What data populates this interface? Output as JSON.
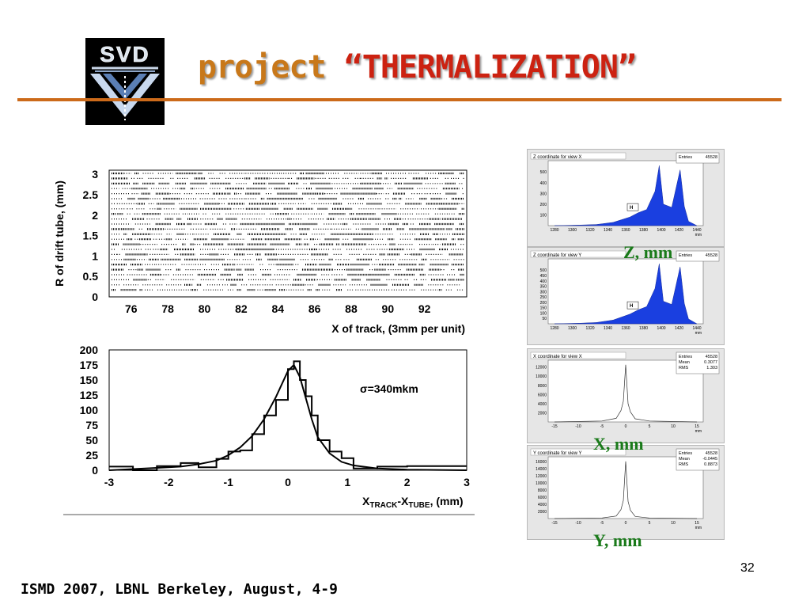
{
  "slide": {
    "title_word1": "project",
    "title_word2": "“THERMALIZATION”",
    "logo_text": "SVD",
    "page_number": "32",
    "footer": "ISMD 2007, LBNL Berkeley,  August, 4-9",
    "accent_color": "#cc6a1a"
  },
  "labels": {
    "z": "Z, mm",
    "x": "X, mm",
    "y": "Y, mm"
  },
  "chart_data": [
    {
      "type": "scatter",
      "title": "",
      "xlabel": "X of track, (3mm per unit)",
      "ylabel": "R of drift tube, (mm)",
      "xlim": [
        74.8,
        94.3
      ],
      "ylim": [
        0,
        3.1
      ],
      "x_ticks": [
        "76",
        "78",
        "80",
        "82",
        "84",
        "86",
        "88",
        "90",
        "92"
      ],
      "y_ticks": [
        "0",
        "0.5",
        "1",
        "1.5",
        "2",
        "2.5",
        "3"
      ]
    },
    {
      "type": "line",
      "title": "",
      "annotation": "σ=340mkm",
      "xlabel_parts": [
        "X",
        "TRACK",
        "-X",
        "TUBE",
        ", (mm)"
      ],
      "xlim": [
        -3,
        3
      ],
      "ylim": [
        0,
        200
      ],
      "x_ticks": [
        "-3",
        "-2",
        "-1",
        "0",
        "1",
        "2",
        "3"
      ],
      "y_ticks": [
        "0",
        "25",
        "50",
        "75",
        "100",
        "125",
        "150",
        "175",
        "200"
      ],
      "x": [
        -3.0,
        -2.6,
        -2.2,
        -1.8,
        -1.5,
        -1.2,
        -1.0,
        -0.8,
        -0.6,
        -0.4,
        -0.2,
        0.0,
        0.1,
        0.2,
        0.3,
        0.4,
        0.5,
        0.7,
        0.9,
        1.1,
        1.5,
        2.0,
        3.0
      ],
      "y": [
        0,
        2,
        4,
        6,
        10,
        16,
        25,
        38,
        57,
        85,
        122,
        165,
        175,
        155,
        120,
        85,
        55,
        28,
        14,
        8,
        3,
        1,
        0
      ]
    },
    {
      "type": "area",
      "title": "Z coordinate for view X",
      "legend": [
        "Entries",
        "45528"
      ],
      "x_ticks": [
        "1280",
        "1300",
        "1320",
        "1340",
        "1360",
        "1380",
        "1400",
        "1420",
        "1440"
      ],
      "y_ticks": [
        "100",
        "200",
        "300",
        "400",
        "500"
      ],
      "marker": "H",
      "x": [
        1270,
        1300,
        1320,
        1340,
        1360,
        1370,
        1380,
        1390,
        1395,
        1400,
        1410,
        1420,
        1425,
        1430,
        1440
      ],
      "y": [
        0,
        5,
        10,
        30,
        80,
        120,
        150,
        320,
        560,
        200,
        170,
        520,
        180,
        40,
        0
      ]
    },
    {
      "type": "area",
      "title": "Z coordinate for view Y",
      "legend": [
        "Entries",
        "45528"
      ],
      "x_ticks": [
        "1280",
        "1300",
        "1320",
        "1340",
        "1360",
        "1380",
        "1400",
        "1420",
        "1440"
      ],
      "y_ticks": [
        "50",
        "100",
        "150",
        "200",
        "250",
        "300",
        "350",
        "400",
        "450",
        "500"
      ],
      "marker": "H",
      "x": [
        1270,
        1300,
        1320,
        1340,
        1360,
        1370,
        1380,
        1390,
        1395,
        1400,
        1410,
        1420,
        1425,
        1430,
        1440
      ],
      "y": [
        0,
        5,
        12,
        35,
        90,
        130,
        160,
        330,
        560,
        210,
        180,
        530,
        190,
        45,
        0
      ]
    },
    {
      "type": "line",
      "title": "X coordinate for view X",
      "stats": [
        [
          "Entries",
          "45528"
        ],
        [
          "Mean",
          "0.3077"
        ],
        [
          "RMS",
          "1.303"
        ]
      ],
      "x_ticks": [
        "-15",
        "-10",
        "-5",
        "0",
        "5",
        "10",
        "15"
      ],
      "y_ticks": [
        "2000",
        "4000",
        "6000",
        "8000",
        "10000",
        "12000"
      ],
      "x": [
        -15,
        -5,
        -2,
        -1,
        -0.5,
        0,
        0.5,
        1,
        2,
        5,
        15
      ],
      "y": [
        0,
        200,
        800,
        2500,
        4500,
        12500,
        4000,
        2200,
        700,
        200,
        0
      ]
    },
    {
      "type": "line",
      "title": "Y coordinate for view Y",
      "stats": [
        [
          "Entries",
          "45528"
        ],
        [
          "Mean",
          "-0.0445"
        ],
        [
          "RMS",
          "0.8873"
        ]
      ],
      "x_ticks": [
        "-15",
        "-10",
        "-5",
        "0",
        "5",
        "10",
        "15"
      ],
      "y_ticks": [
        "2000",
        "4000",
        "6000",
        "8000",
        "10000",
        "12000",
        "14000",
        "16000"
      ],
      "x": [
        -15,
        -5,
        -2,
        -1,
        -0.5,
        0,
        0.5,
        1,
        2,
        5,
        15
      ],
      "y": [
        0,
        150,
        700,
        2500,
        5000,
        16000,
        4800,
        2300,
        600,
        150,
        0
      ]
    }
  ]
}
